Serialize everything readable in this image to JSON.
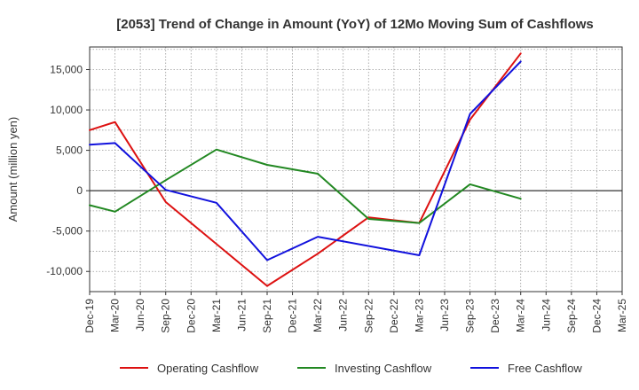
{
  "chart_data": {
    "type": "line",
    "title": "[2053]  Trend of Change in Amount (YoY) of 12Mo Moving Sum of Cashflows",
    "xlabel": "",
    "ylabel": "Amount (million yen)",
    "categories": [
      "Dec-19",
      "Mar-20",
      "Jun-20",
      "Sep-20",
      "Dec-20",
      "Mar-21",
      "Jun-21",
      "Sep-21",
      "Dec-21",
      "Mar-22",
      "Jun-22",
      "Sep-22",
      "Dec-22",
      "Mar-23",
      "Jun-23",
      "Sep-23",
      "Dec-23",
      "Mar-24",
      "Jun-24",
      "Sep-24",
      "Dec-24",
      "Mar-25"
    ],
    "ylim": [
      -12500,
      17800
    ],
    "yticks": [
      -10000,
      -5000,
      0,
      5000,
      10000,
      15000
    ],
    "ytick_labels": [
      "-10,000",
      "-5,000",
      "0",
      "5,000",
      "10,000",
      "15,000"
    ],
    "grid": true,
    "legend_position": "bottom",
    "series": [
      {
        "name": "Operating Cashflow",
        "color": "#dd1111",
        "values": [
          7500,
          8500,
          null,
          -1400,
          null,
          null,
          null,
          -11800,
          null,
          -7800,
          null,
          -3300,
          null,
          -4000,
          null,
          8800,
          null,
          17000,
          null,
          null,
          null,
          null
        ]
      },
      {
        "name": "Investing Cashflow",
        "color": "#228822",
        "values": [
          -1800,
          -2600,
          null,
          1300,
          null,
          5100,
          null,
          3200,
          null,
          2100,
          null,
          -3500,
          null,
          -4000,
          null,
          800,
          null,
          -1000,
          null,
          null,
          null,
          null
        ]
      },
      {
        "name": "Free Cashflow",
        "color": "#1111dd",
        "values": [
          5700,
          5900,
          null,
          100,
          null,
          -1500,
          null,
          -8600,
          null,
          -5700,
          null,
          null,
          null,
          -8000,
          null,
          9500,
          null,
          16000,
          null,
          null,
          null,
          null
        ]
      }
    ]
  }
}
